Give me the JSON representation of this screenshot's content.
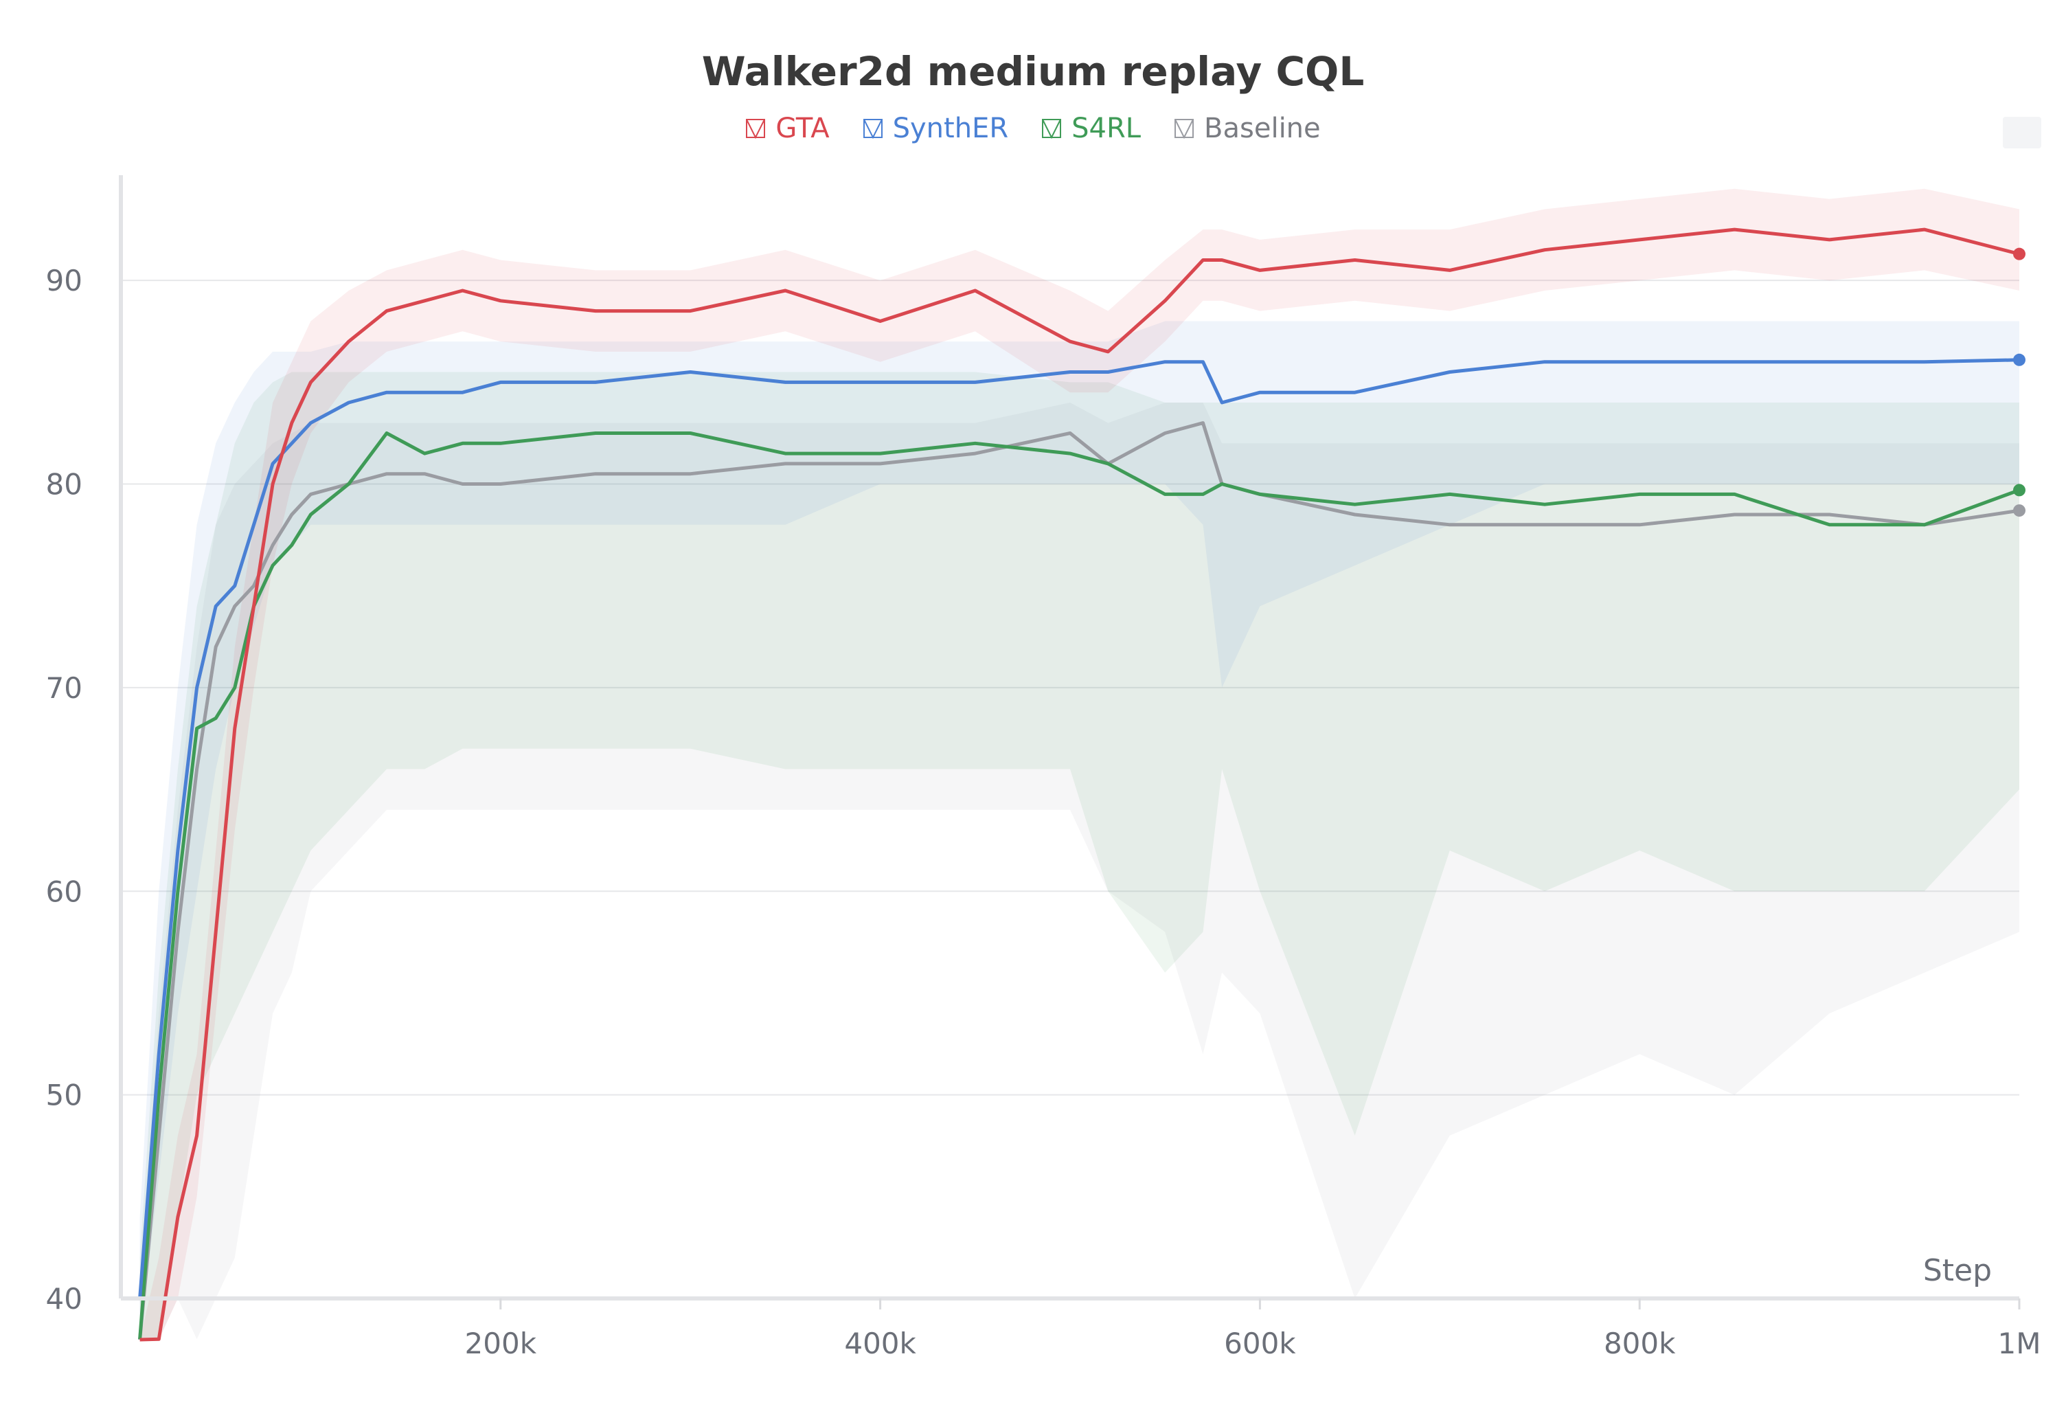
{
  "chart_data": {
    "type": "line",
    "title": "Walker2d medium replay CQL",
    "xlabel": "Step",
    "ylabel": "",
    "xlim": [
      0,
      1000000
    ],
    "ylim": [
      40,
      95
    ],
    "x_ticks": [
      200000,
      400000,
      600000,
      800000,
      1000000
    ],
    "x_tick_labels": [
      "200k",
      "400k",
      "600k",
      "800k",
      "1M"
    ],
    "y_ticks": [
      40,
      50,
      60,
      70,
      80,
      90
    ],
    "y_tick_labels": [
      "40",
      "50",
      "60",
      "70",
      "80",
      "90"
    ],
    "grid": true,
    "legend_position": "top",
    "x": [
      10000,
      20000,
      30000,
      40000,
      50000,
      60000,
      70000,
      80000,
      90000,
      100000,
      120000,
      140000,
      160000,
      180000,
      200000,
      250000,
      300000,
      350000,
      400000,
      450000,
      500000,
      520000,
      550000,
      570000,
      580000,
      600000,
      650000,
      700000,
      750000,
      800000,
      850000,
      900000,
      950000,
      1000000
    ],
    "series": [
      {
        "name": "GTA",
        "color": "#d9474f",
        "values": [
          30,
          38,
          44,
          48,
          58,
          68,
          74,
          80,
          83,
          85,
          87,
          88.5,
          89,
          89.5,
          89,
          88.5,
          88.5,
          89.5,
          88,
          89.5,
          87,
          86.5,
          89,
          91,
          91,
          90.5,
          91,
          90.5,
          91.5,
          92,
          92.5,
          92,
          92.5,
          91.3
        ],
        "lower": [
          28,
          34,
          40,
          45,
          54,
          63,
          70,
          76,
          80,
          82.5,
          85,
          86.5,
          87,
          87.5,
          87,
          86.5,
          86.5,
          87.5,
          86,
          87.5,
          84.5,
          84.5,
          87,
          89,
          89,
          88.5,
          89,
          88.5,
          89.5,
          90,
          90.5,
          90,
          90.5,
          89.5
        ],
        "upper": [
          33,
          42,
          48,
          52,
          62,
          72,
          78,
          84,
          86,
          88,
          89.5,
          90.5,
          91,
          91.5,
          91,
          90.5,
          90.5,
          91.5,
          90,
          91.5,
          89.5,
          88.5,
          91,
          92.5,
          92.5,
          92,
          92.5,
          92.5,
          93.5,
          94,
          94.5,
          94,
          94.5,
          93.5
        ]
      },
      {
        "name": "SynthER",
        "color": "#4a80d4",
        "values": [
          40,
          52,
          62,
          70,
          74,
          75,
          78,
          81,
          82,
          83,
          84,
          84.5,
          84.5,
          84.5,
          85,
          85,
          85.5,
          85,
          85,
          85,
          85.5,
          85.5,
          86,
          86,
          84,
          84.5,
          84.5,
          85.5,
          86,
          86,
          86,
          86,
          86,
          86.1
        ],
        "lower": [
          36,
          46,
          54,
          60,
          66,
          70,
          73,
          76,
          77,
          78,
          78,
          78,
          78,
          78,
          78,
          78,
          78,
          78,
          80,
          80,
          80,
          80,
          80,
          78,
          70,
          74,
          76,
          78,
          80,
          80,
          80,
          80,
          80,
          80
        ],
        "upper": [
          44,
          60,
          70,
          78,
          82,
          84,
          85.5,
          86.5,
          86.5,
          86.5,
          87,
          87,
          87,
          87,
          87,
          87,
          87,
          87,
          87,
          87,
          87,
          87,
          88,
          88,
          88,
          88,
          88,
          88,
          88,
          88,
          88,
          88,
          88,
          88
        ]
      },
      {
        "name": "S4RL",
        "color": "#3f9b57",
        "values": [
          38,
          50,
          60,
          68,
          68.5,
          70,
          74,
          76,
          77,
          78.5,
          80,
          82.5,
          81.5,
          82,
          82,
          82.5,
          82.5,
          81.5,
          81.5,
          82,
          81.5,
          81,
          79.5,
          79.5,
          80,
          79.5,
          79,
          79.5,
          79,
          79.5,
          79.5,
          78,
          78,
          79.7
        ],
        "lower": [
          30,
          36,
          44,
          50,
          52,
          54,
          56,
          58,
          60,
          62,
          64,
          66,
          66,
          67,
          67,
          67,
          67,
          66,
          66,
          66,
          66,
          60,
          56,
          58,
          66,
          60,
          48,
          62,
          60,
          62,
          60,
          60,
          60,
          65
        ],
        "upper": [
          42,
          56,
          66,
          74,
          78,
          82,
          84,
          85,
          85.5,
          85.5,
          85.5,
          85.5,
          85.5,
          85.5,
          85.5,
          85.5,
          85.5,
          85.5,
          85.5,
          85.5,
          85,
          85,
          84,
          84,
          84,
          84,
          84,
          84,
          84,
          84,
          84,
          84,
          84,
          84
        ]
      },
      {
        "name": "Baseline",
        "color": "#9a9ca2",
        "values": [
          36,
          48,
          58,
          66,
          72,
          74,
          75,
          77,
          78.5,
          79.5,
          80,
          80.5,
          80.5,
          80,
          80,
          80.5,
          80.5,
          81,
          81,
          81.5,
          82.5,
          81,
          82.5,
          83,
          80,
          79.5,
          78.5,
          78,
          78,
          78,
          78.5,
          78.5,
          78,
          78.7
        ],
        "lower": [
          30,
          36,
          40,
          38,
          40,
          42,
          48,
          54,
          56,
          60,
          62,
          64,
          64,
          64,
          64,
          64,
          64,
          64,
          64,
          64,
          64,
          60,
          58,
          52,
          56,
          54,
          40,
          48,
          50,
          52,
          50,
          54,
          56,
          58
        ],
        "upper": [
          40,
          54,
          64,
          72,
          78,
          80,
          81,
          82,
          82.5,
          83,
          83,
          83,
          83,
          83,
          83,
          83,
          83,
          83,
          83,
          83,
          84,
          83,
          84,
          84,
          82,
          82,
          82,
          82,
          82,
          82,
          82,
          82,
          82,
          82
        ]
      }
    ]
  }
}
